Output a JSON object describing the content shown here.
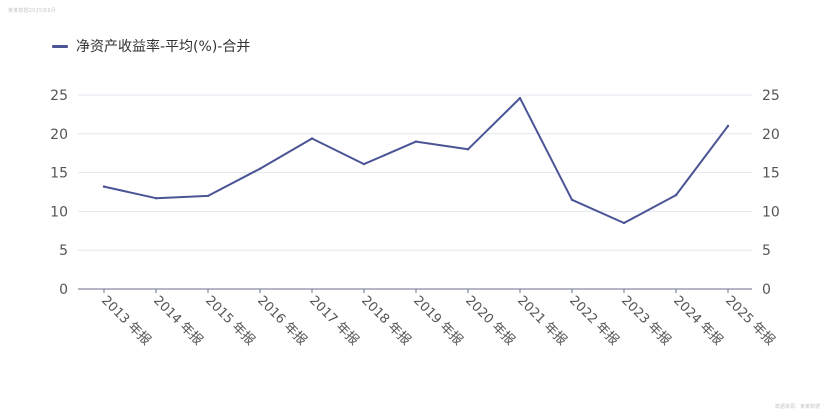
{
  "watermark_top": "某某数据2025年6月",
  "watermark_bottom": "数据来源：某某数据",
  "legend": {
    "series_label": "净资产收益率-平均(%)-合并",
    "color": "#4b5596"
  },
  "chart_data": {
    "type": "line",
    "categories": [
      "2013 年报",
      "2014 年报",
      "2015 年报",
      "2016 年报",
      "2017 年报",
      "2018 年报",
      "2019 年报",
      "2020 年报",
      "2021 年报",
      "2022 年报",
      "2023 年报",
      "2024 年报",
      "2025 年报"
    ],
    "series": [
      {
        "name": "净资产收益率-平均(%)-合并",
        "color": "#4b5596",
        "values": [
          13.2,
          11.7,
          12.0,
          15.5,
          19.4,
          16.1,
          19.0,
          18.0,
          24.6,
          11.5,
          8.5,
          12.1,
          21.0
        ]
      }
    ],
    "ylim": [
      0,
      25
    ],
    "yticks": [
      0,
      5,
      10,
      15,
      20,
      25
    ],
    "grid": true,
    "secondary_axis": true,
    "legend_position": "top-left"
  }
}
